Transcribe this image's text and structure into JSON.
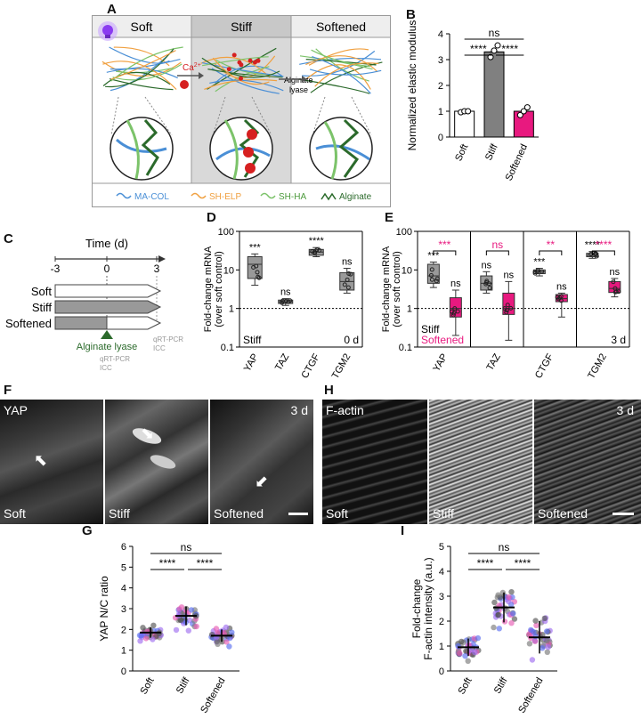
{
  "panel_letters": {
    "A": "A",
    "B": "B",
    "C": "C",
    "D": "D",
    "E": "E",
    "F": "F",
    "G": "G",
    "H": "H",
    "I": "I"
  },
  "panelA": {
    "headers": [
      "Soft",
      "Stiff",
      "Softened"
    ],
    "ca_label": "Ca",
    "ca_superscript": "2+",
    "lyase_label_line1": "Alginate",
    "lyase_label_line2": "lyase",
    "legend": [
      {
        "name": "MA-COL",
        "color": "#4a8fd6"
      },
      {
        "name": "SH-ELP",
        "color": "#f0a040"
      },
      {
        "name": "SH-HA",
        "color": "#7cc36a"
      },
      {
        "name": "Alginate",
        "color": "#2b6a2b"
      }
    ]
  },
  "panelC": {
    "time_label": "Time (d)",
    "ticks": [
      "-3",
      "0",
      "3"
    ],
    "rows": [
      "Soft",
      "Stiff",
      "Softened"
    ],
    "lyase_label": "Alginate lyase",
    "assay1": [
      "qRT-PCR",
      "ICC"
    ],
    "assay2": [
      "qRT-PCR",
      "ICC"
    ]
  },
  "panelF": {
    "channel": "YAP",
    "time": "3 d",
    "conditions": [
      "Soft",
      "Stiff",
      "Softened"
    ]
  },
  "panelH": {
    "channel": "F-actin",
    "time": "3 d",
    "conditions": [
      "Soft",
      "Stiff",
      "Softened"
    ]
  },
  "colors": {
    "soft": "#ffffff",
    "stiff": "#808080",
    "softened": "#e8197f"
  },
  "chart_data": [
    {
      "id": "B",
      "type": "bar",
      "categories": [
        "Soft",
        "Stiff",
        "Softened"
      ],
      "values": [
        1.0,
        3.3,
        1.0
      ],
      "points": [
        [
          0.96,
          1.0,
          1.0
        ],
        [
          3.1,
          3.35,
          3.55
        ],
        [
          0.85,
          1.0,
          1.15
        ]
      ],
      "ylabel": "Normalized elastic modulus",
      "ylim": [
        0,
        4
      ],
      "yticks": [
        0,
        1,
        2,
        3,
        4
      ],
      "significance": [
        {
          "from": 0,
          "to": 1,
          "label": "****"
        },
        {
          "from": 1,
          "to": 2,
          "label": "****"
        },
        {
          "from": 0,
          "to": 2,
          "label": "ns"
        }
      ]
    },
    {
      "id": "D",
      "type": "box",
      "scale": "log",
      "categories": [
        "YAP",
        "TAZ",
        "CTGF",
        "TGM2"
      ],
      "boxes": [
        {
          "min": 4.0,
          "q1": 6,
          "median": 14,
          "q3": 22,
          "max": 26
        },
        {
          "min": 1.2,
          "q1": 1.35,
          "median": 1.5,
          "q3": 1.65,
          "max": 1.8
        },
        {
          "min": 22,
          "q1": 24,
          "median": 29,
          "q3": 34,
          "max": 38
        },
        {
          "min": 2.5,
          "q1": 3,
          "median": 5,
          "q3": 8.5,
          "max": 11
        }
      ],
      "stars": [
        "***",
        "ns",
        "****",
        "ns"
      ],
      "ylabel": "Fold-change mRNA (over soft control)",
      "ylim": [
        0.1,
        100
      ],
      "yticks": [
        "0.1",
        "1",
        "10",
        "100"
      ],
      "corner_label": "Stiff",
      "time_label": "0 d"
    },
    {
      "id": "E",
      "type": "box",
      "scale": "log",
      "categories": [
        "YAP",
        "TAZ",
        "CTGF",
        "TGM2"
      ],
      "series": [
        {
          "name": "Stiff",
          "boxes": [
            {
              "min": 3.5,
              "q1": 4.5,
              "median": 7,
              "q3": 14,
              "max": 16
            },
            {
              "min": 2.5,
              "q1": 3,
              "median": 4.5,
              "q3": 7,
              "max": 9
            },
            {
              "min": 7,
              "q1": 8,
              "median": 9,
              "q3": 10,
              "max": 11
            },
            {
              "min": 20,
              "q1": 22,
              "median": 24,
              "q3": 27,
              "max": 30
            }
          ]
        },
        {
          "name": "Softened",
          "boxes": [
            {
              "min": 0.2,
              "q1": 0.6,
              "median": 1.0,
              "q3": 1.9,
              "max": 3
            },
            {
              "min": 0.15,
              "q1": 0.7,
              "median": 1.0,
              "q3": 2.5,
              "max": 5
            },
            {
              "min": 0.6,
              "q1": 1.5,
              "median": 1.8,
              "q3": 2.3,
              "max": 2.5
            },
            {
              "min": 2,
              "q1": 2.6,
              "median": 3.3,
              "q3": 5,
              "max": 6
            }
          ]
        }
      ],
      "stars_stiff": [
        "***",
        "ns",
        "***",
        "****"
      ],
      "stars_softened": [
        "ns",
        "ns",
        "ns",
        "ns"
      ],
      "stars_compare": [
        "***",
        "ns",
        "**",
        "****"
      ],
      "ylabel": "Fold-change mRNA (over soft control)",
      "ylim": [
        0.1,
        100
      ],
      "yticks": [
        "0.1",
        "1",
        "10",
        "100"
      ],
      "time_label": "3 d"
    },
    {
      "id": "G",
      "type": "scatter",
      "categories": [
        "Soft",
        "Stiff",
        "Softened"
      ],
      "means": [
        1.85,
        2.65,
        1.7
      ],
      "sd": [
        0.25,
        0.45,
        0.3
      ],
      "ylabel": "YAP N/C ratio",
      "ylim": [
        0,
        6
      ],
      "yticks": [
        0,
        1,
        2,
        3,
        4,
        5,
        6
      ],
      "significance": [
        {
          "from": 0,
          "to": 1,
          "label": "****"
        },
        {
          "from": 1,
          "to": 2,
          "label": "****"
        },
        {
          "from": 0,
          "to": 2,
          "label": "ns"
        }
      ]
    },
    {
      "id": "I",
      "type": "scatter",
      "categories": [
        "Soft",
        "Stiff",
        "Softened"
      ],
      "means": [
        0.95,
        2.55,
        1.35
      ],
      "sd": [
        0.35,
        0.6,
        0.65
      ],
      "ylabel": "Fold-change F-actin intensity (a.u.)",
      "ylim": [
        0,
        5
      ],
      "yticks": [
        0,
        1,
        2,
        3,
        4,
        5
      ],
      "significance": [
        {
          "from": 0,
          "to": 1,
          "label": "****"
        },
        {
          "from": 1,
          "to": 2,
          "label": "****"
        },
        {
          "from": 0,
          "to": 2,
          "label": "ns"
        }
      ]
    }
  ]
}
